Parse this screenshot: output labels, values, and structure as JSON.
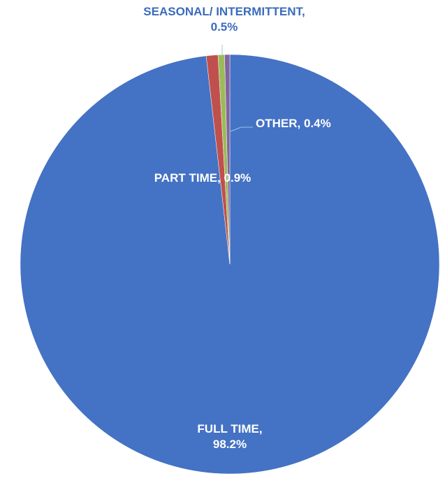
{
  "chart_data": {
    "type": "pie",
    "categories": [
      "FULL TIME,",
      "PART TIME,",
      "SEASONAL/ INTERMITTENT,",
      "OTHER,"
    ],
    "values": [
      98.2,
      0.9,
      0.5,
      0.4
    ],
    "value_labels": [
      "98.2%",
      "0.9%",
      "0.5%",
      "0.4%"
    ],
    "colors": [
      "#4472c4",
      "#c0504d",
      "#9bbb59",
      "#8064a2"
    ]
  }
}
